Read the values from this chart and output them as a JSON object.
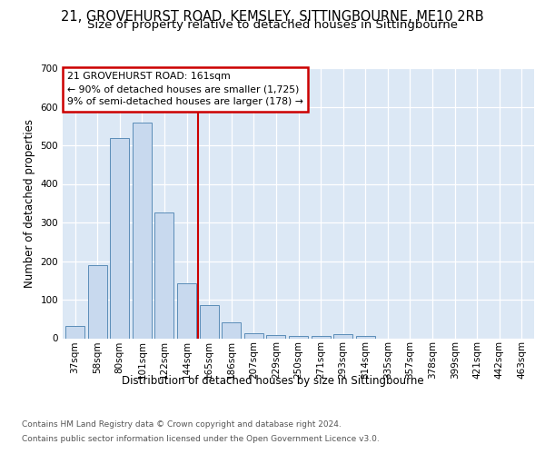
{
  "title_line1": "21, GROVEHURST ROAD, KEMSLEY, SITTINGBOURNE, ME10 2RB",
  "title_line2": "Size of property relative to detached houses in Sittingbourne",
  "xlabel": "Distribution of detached houses by size in Sittingbourne",
  "ylabel": "Number of detached properties",
  "categories": [
    "37sqm",
    "58sqm",
    "80sqm",
    "101sqm",
    "122sqm",
    "144sqm",
    "165sqm",
    "186sqm",
    "207sqm",
    "229sqm",
    "250sqm",
    "271sqm",
    "293sqm",
    "314sqm",
    "335sqm",
    "357sqm",
    "378sqm",
    "399sqm",
    "421sqm",
    "442sqm",
    "463sqm"
  ],
  "values": [
    32,
    190,
    518,
    560,
    325,
    143,
    87,
    42,
    14,
    8,
    7,
    7,
    10,
    6,
    0,
    0,
    0,
    0,
    0,
    0,
    0
  ],
  "bar_color": "#c8d9ee",
  "bar_edge_color": "#5b8db8",
  "vline_color": "#cc0000",
  "annotation_text": "21 GROVEHURST ROAD: 161sqm\n← 90% of detached houses are smaller (1,725)\n9% of semi-detached houses are larger (178) →",
  "annotation_box_color": "#cc0000",
  "ylim": [
    0,
    700
  ],
  "yticks": [
    0,
    100,
    200,
    300,
    400,
    500,
    600,
    700
  ],
  "background_color": "#dce8f5",
  "footer_line1": "Contains HM Land Registry data © Crown copyright and database right 2024.",
  "footer_line2": "Contains public sector information licensed under the Open Government Licence v3.0.",
  "title_fontsize": 10.5,
  "subtitle_fontsize": 9.5,
  "axis_label_fontsize": 8.5,
  "tick_fontsize": 7.5,
  "footer_fontsize": 6.5,
  "annotation_fontsize": 7.8
}
